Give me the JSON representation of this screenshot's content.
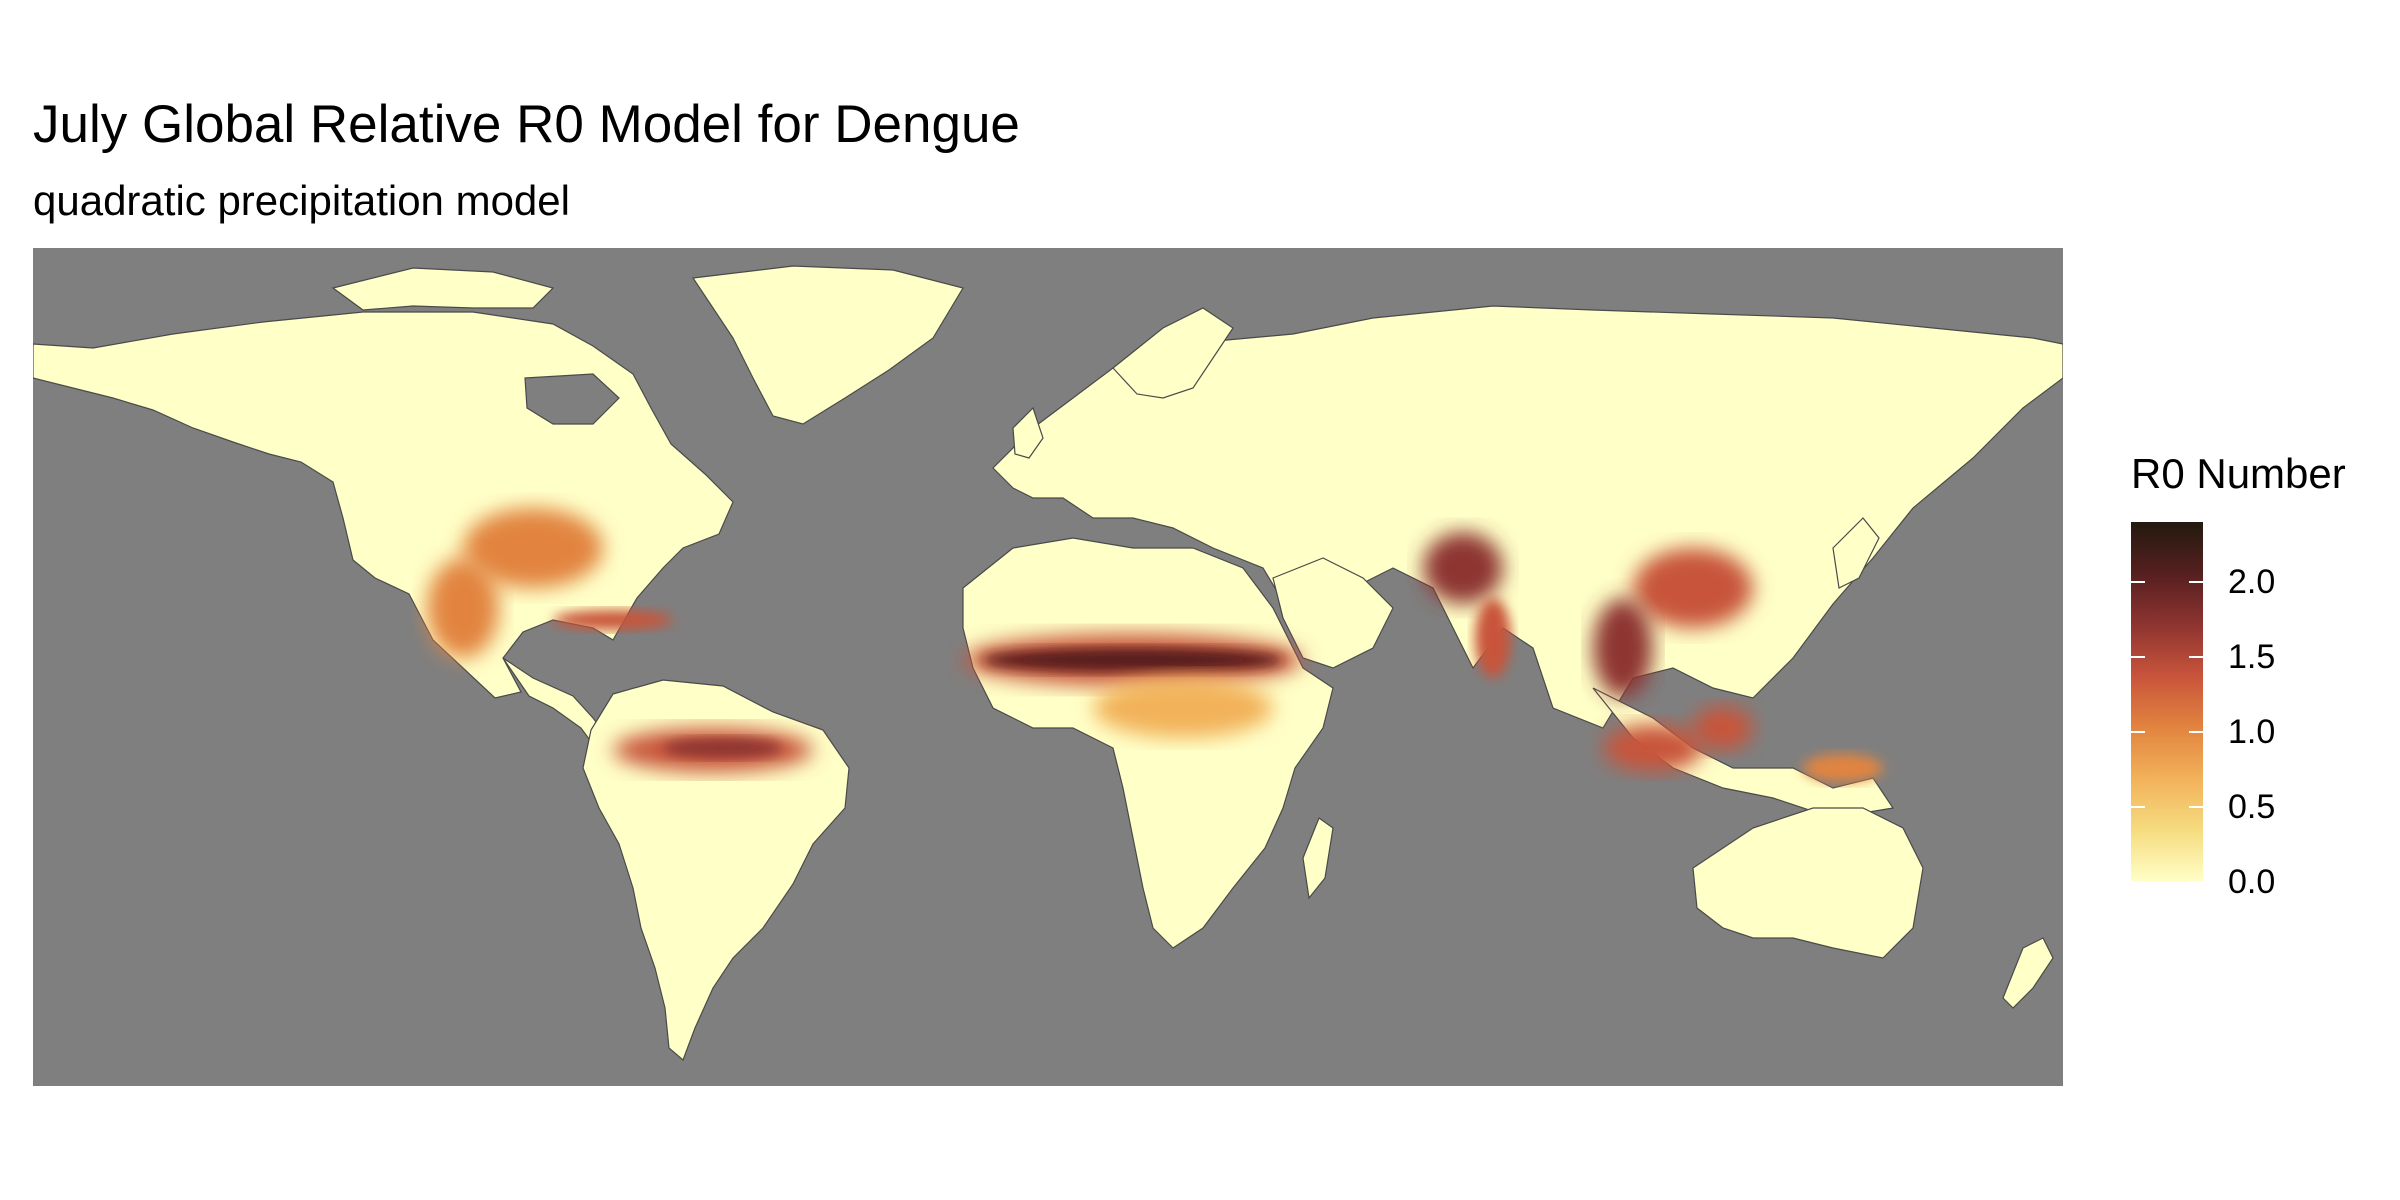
{
  "title": "July Global Relative R0 Model for Dengue",
  "subtitle": "quadratic precipitation model",
  "colors": {
    "ocean": "#7f7f7f",
    "land_low": "#ffffc8",
    "border": "#4a4a4a",
    "scale": [
      "#ffffc8",
      "#f6dc80",
      "#f2b25a",
      "#e2843f",
      "#c8543b",
      "#8e3431",
      "#561f1f",
      "#221a0f"
    ]
  },
  "legend": {
    "title": "R0 Number",
    "min": 0.0,
    "max": 2.4,
    "ticks": [
      {
        "value": 2.0,
        "label": "2.0"
      },
      {
        "value": 1.5,
        "label": "1.5"
      },
      {
        "value": 1.0,
        "label": "1.0"
      },
      {
        "value": 0.5,
        "label": "0.5"
      },
      {
        "value": 0.0,
        "label": "0.0"
      }
    ]
  }
}
